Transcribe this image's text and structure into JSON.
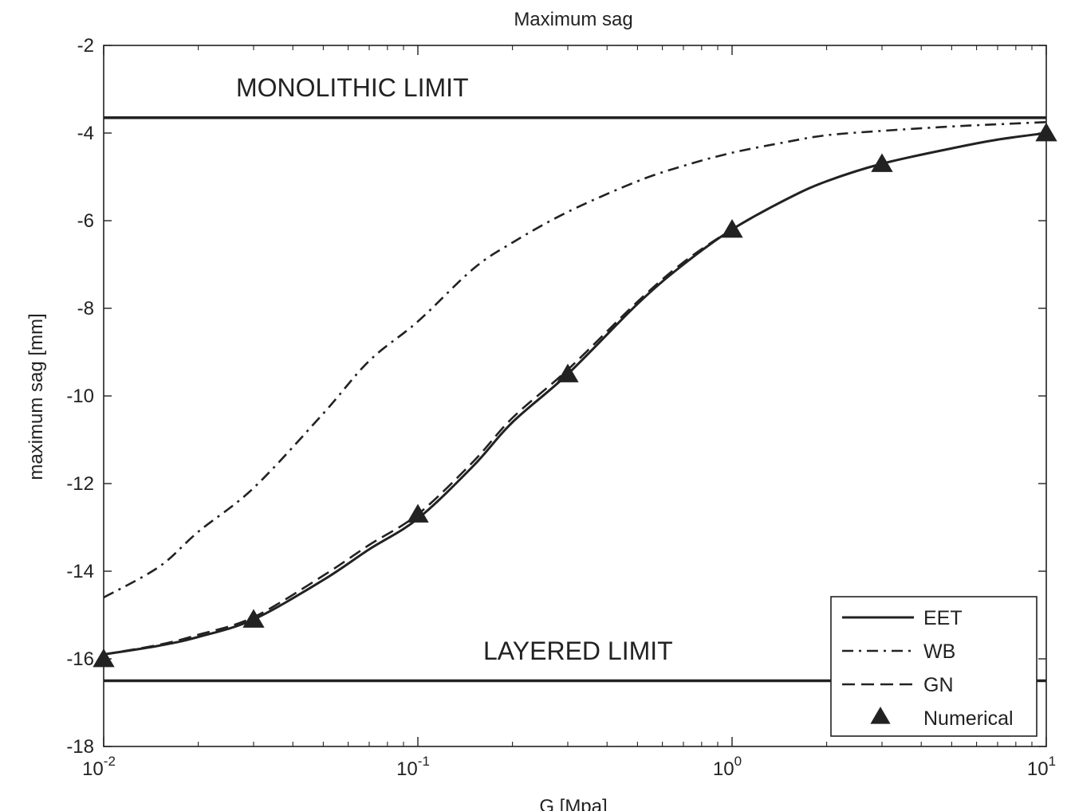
{
  "chart_data": {
    "type": "line",
    "title": "Maximum sag",
    "xlabel": "G [Mpa]",
    "ylabel": "maximum sag [mm]",
    "xscale": "log",
    "xlim": [
      0.01,
      10
    ],
    "ylim": [
      -18,
      -2
    ],
    "x_ticks": [
      {
        "base": "10",
        "exp": "-2",
        "value": 0.01
      },
      {
        "base": "10",
        "exp": "-1",
        "value": 0.1
      },
      {
        "base": "10",
        "exp": "0",
        "value": 1
      },
      {
        "base": "10",
        "exp": "1",
        "value": 10
      }
    ],
    "y_ticks": [
      "-2",
      "-4",
      "-6",
      "-8",
      "-10",
      "-12",
      "-14",
      "-16",
      "-18"
    ],
    "grid": false,
    "legend_position": "bottom-right",
    "annotations": {
      "monolithic": {
        "text": "MONOLITHIC LIMIT",
        "y": -3.65
      },
      "layered": {
        "text": "LAYERED LIMIT",
        "y": -16.5
      }
    },
    "series": [
      {
        "name": "EET",
        "style": "solid",
        "x": [
          0.01,
          0.015,
          0.02,
          0.03,
          0.05,
          0.07,
          0.1,
          0.15,
          0.2,
          0.3,
          0.5,
          0.7,
          1,
          1.5,
          2,
          3,
          5,
          7,
          10
        ],
        "y": [
          -15.9,
          -15.7,
          -15.5,
          -15.1,
          -14.2,
          -13.5,
          -12.8,
          -11.6,
          -10.6,
          -9.5,
          -7.9,
          -7.0,
          -6.2,
          -5.5,
          -5.1,
          -4.7,
          -4.35,
          -4.15,
          -4.0
        ]
      },
      {
        "name": "WB",
        "style": "dashdot",
        "x": [
          0.01,
          0.015,
          0.02,
          0.03,
          0.05,
          0.07,
          0.1,
          0.15,
          0.2,
          0.3,
          0.5,
          0.7,
          1,
          1.5,
          2,
          3,
          5,
          7,
          10
        ],
        "y": [
          -14.6,
          -13.9,
          -13.1,
          -12.1,
          -10.4,
          -9.2,
          -8.3,
          -7.1,
          -6.5,
          -5.8,
          -5.1,
          -4.75,
          -4.45,
          -4.2,
          -4.05,
          -3.95,
          -3.85,
          -3.8,
          -3.75
        ]
      },
      {
        "name": "GN",
        "style": "dashed",
        "x": [
          0.01,
          0.015,
          0.02,
          0.03,
          0.05,
          0.07,
          0.1,
          0.15,
          0.2,
          0.3,
          0.5,
          0.7,
          1,
          1.5,
          2,
          3,
          5,
          7,
          10
        ],
        "y": [
          -15.9,
          -15.68,
          -15.45,
          -15.05,
          -14.1,
          -13.4,
          -12.7,
          -11.5,
          -10.5,
          -9.4,
          -7.85,
          -6.95,
          -6.2,
          -5.5,
          -5.1,
          -4.7,
          -4.35,
          -4.15,
          -4.0
        ]
      },
      {
        "name": "Numerical",
        "style": "marker-triangle",
        "x": [
          0.01,
          0.03,
          0.1,
          0.3,
          1,
          3,
          10
        ],
        "y": [
          -16.0,
          -15.1,
          -12.7,
          -9.5,
          -6.2,
          -4.7,
          -4.0
        ]
      }
    ],
    "reference_lines": [
      {
        "label": "MONOLITHIC LIMIT",
        "y": -3.65
      },
      {
        "label": "LAYERED LIMIT",
        "y": -16.5
      }
    ]
  }
}
